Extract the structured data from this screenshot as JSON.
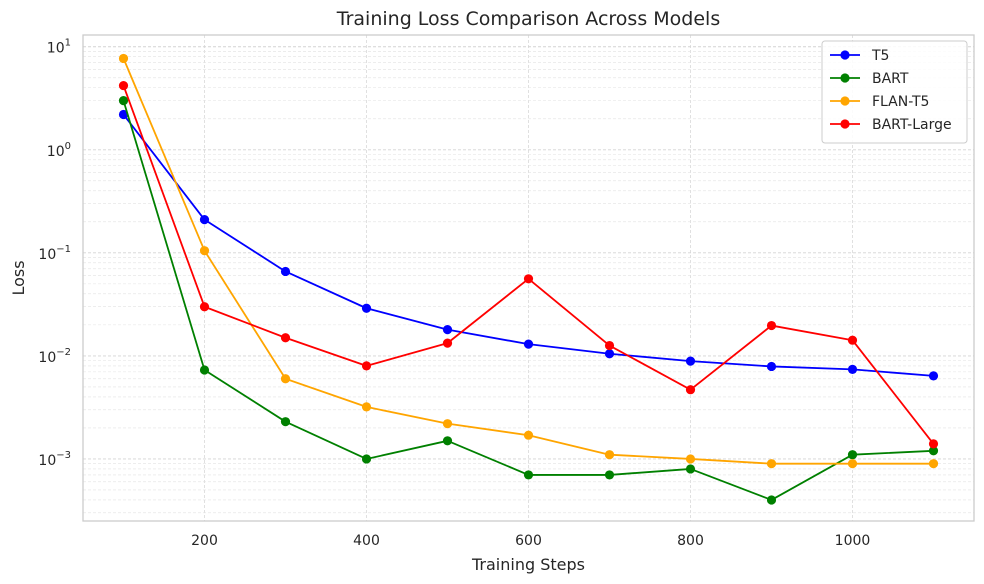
{
  "chart_data": {
    "type": "line",
    "title": "Training Loss Comparison Across Models",
    "xlabel": "Training Steps",
    "ylabel": "Loss",
    "x": [
      100,
      200,
      300,
      400,
      500,
      600,
      700,
      800,
      900,
      1000,
      1100
    ],
    "xlim": [
      50,
      1150
    ],
    "ylim": [
      0.00025,
      13
    ],
    "yscale": "log",
    "x_ticks": [
      200,
      400,
      600,
      800,
      1000
    ],
    "y_ticks": [
      {
        "value": 0.001,
        "base": "10",
        "exp": "−3"
      },
      {
        "value": 0.01,
        "base": "10",
        "exp": "−2"
      },
      {
        "value": 0.1,
        "base": "10",
        "exp": "−1"
      },
      {
        "value": 1,
        "base": "10",
        "exp": "0"
      },
      {
        "value": 10,
        "base": "10",
        "exp": "1"
      }
    ],
    "grid": true,
    "legend_position": "top-right",
    "series": [
      {
        "name": "T5",
        "color": "#0000ff",
        "values": [
          2.2,
          0.21,
          0.066,
          0.029,
          0.018,
          0.013,
          0.0105,
          0.0089,
          0.0079,
          0.0074,
          0.0064
        ]
      },
      {
        "name": "BART",
        "color": "#008000",
        "values": [
          3.0,
          0.0073,
          0.0023,
          0.001,
          0.0015,
          0.0007,
          0.0007,
          0.0008,
          0.0004,
          0.0011,
          0.0012
        ]
      },
      {
        "name": "FLAN-T5",
        "color": "#ffa500",
        "values": [
          7.7,
          0.105,
          0.006,
          0.0032,
          0.0022,
          0.0017,
          0.0011,
          0.001,
          0.0009,
          0.0009,
          0.0009
        ]
      },
      {
        "name": "BART-Large",
        "color": "#ff0000",
        "values": [
          4.2,
          0.03,
          0.015,
          0.008,
          0.0133,
          0.056,
          0.0126,
          0.0047,
          0.0197,
          0.0142,
          0.0014
        ]
      }
    ]
  }
}
